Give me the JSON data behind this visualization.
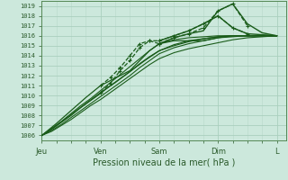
{
  "xlabel": "Pression niveau de la mer( hPa )",
  "bg_color": "#cce8dc",
  "grid_color_major": "#aacfbe",
  "grid_color_minor": "#b8d9ca",
  "line_color": "#1a5c1a",
  "ylim": [
    1005.5,
    1019.5
  ],
  "yticks": [
    1006,
    1007,
    1008,
    1009,
    1010,
    1011,
    1012,
    1013,
    1014,
    1015,
    1016,
    1017,
    1018,
    1019
  ],
  "day_labels": [
    "Jeu",
    "Ven",
    "Sam",
    "Dim",
    "L"
  ],
  "day_positions": [
    0,
    24,
    48,
    72,
    96
  ],
  "xlim": [
    0,
    100
  ],
  "figsize": [
    3.2,
    2.0
  ],
  "dpi": 100,
  "lines": [
    {
      "x": [
        0,
        4,
        8,
        12,
        16,
        20,
        24,
        28,
        32,
        36,
        40,
        44,
        48,
        54,
        60,
        66,
        72,
        78,
        84,
        90,
        96
      ],
      "y": [
        1006.0,
        1006.5,
        1007.1,
        1007.8,
        1008.5,
        1009.2,
        1009.9,
        1010.6,
        1011.3,
        1012.0,
        1012.8,
        1013.5,
        1014.2,
        1014.8,
        1015.2,
        1015.5,
        1015.8,
        1015.9,
        1016.0,
        1016.0,
        1016.0
      ],
      "style": "solid",
      "lw": 0.8
    },
    {
      "x": [
        0,
        4,
        8,
        12,
        16,
        20,
        24,
        28,
        32,
        36,
        40,
        44,
        48,
        54,
        60,
        66,
        72,
        78,
        84,
        90,
        96
      ],
      "y": [
        1006.0,
        1006.4,
        1007.0,
        1007.6,
        1008.3,
        1009.0,
        1009.6,
        1010.3,
        1011.0,
        1011.7,
        1012.4,
        1013.1,
        1013.7,
        1014.3,
        1014.7,
        1015.0,
        1015.3,
        1015.6,
        1015.8,
        1015.9,
        1016.0
      ],
      "style": "solid",
      "lw": 0.8
    },
    {
      "x": [
        0,
        4,
        8,
        12,
        16,
        20,
        24,
        28,
        32,
        36,
        40,
        44,
        48,
        54,
        60,
        66,
        72,
        78,
        84,
        90,
        96
      ],
      "y": [
        1006.0,
        1006.6,
        1007.3,
        1008.0,
        1008.8,
        1009.5,
        1010.2,
        1011.0,
        1011.7,
        1012.4,
        1013.2,
        1013.9,
        1014.5,
        1015.0,
        1015.4,
        1015.7,
        1015.9,
        1016.0,
        1016.0,
        1016.0,
        1016.0
      ],
      "style": "solid",
      "lw": 0.8
    },
    {
      "x": [
        0,
        4,
        8,
        12,
        16,
        20,
        24,
        28,
        32,
        36,
        40,
        44,
        48,
        54,
        60,
        66,
        72,
        78,
        84,
        90,
        96
      ],
      "y": [
        1006.0,
        1006.7,
        1007.4,
        1008.2,
        1009.0,
        1009.7,
        1010.5,
        1011.3,
        1012.1,
        1012.9,
        1013.7,
        1014.5,
        1015.2,
        1015.6,
        1015.8,
        1015.9,
        1016.0,
        1016.0,
        1016.0,
        1016.0,
        1016.0
      ],
      "style": "solid",
      "lw": 0.8
    },
    {
      "x": [
        0,
        6,
        12,
        18,
        24,
        30,
        36,
        42,
        48,
        54,
        60,
        66,
        72,
        78,
        84,
        90,
        96
      ],
      "y": [
        1006.0,
        1007.0,
        1008.1,
        1009.2,
        1010.3,
        1011.3,
        1012.4,
        1013.5,
        1014.5,
        1015.1,
        1015.5,
        1015.7,
        1015.9,
        1016.0,
        1016.0,
        1016.0,
        1016.0
      ],
      "style": "solid",
      "lw": 0.9
    },
    {
      "x": [
        0,
        6,
        12,
        18,
        24,
        28,
        32,
        36,
        40,
        44,
        48,
        54,
        60,
        66,
        72,
        78,
        84,
        90,
        96
      ],
      "y": [
        1006.0,
        1007.2,
        1008.5,
        1009.8,
        1011.0,
        1011.5,
        1012.0,
        1012.5,
        1013.5,
        1014.5,
        1015.2,
        1015.5,
        1015.5,
        1015.5,
        1015.8,
        1016.0,
        1016.0,
        1016.0,
        1016.0
      ],
      "style": "solid",
      "lw": 0.9
    },
    {
      "x": [
        24,
        28,
        32,
        36,
        40,
        44,
        48
      ],
      "y": [
        1010.3,
        1011.2,
        1012.5,
        1013.5,
        1014.8,
        1015.5,
        1015.2
      ],
      "style": "dashed_marker",
      "lw": 0.9
    },
    {
      "x": [
        24,
        28,
        32,
        36,
        40,
        44,
        48
      ],
      "y": [
        1011.0,
        1011.8,
        1012.8,
        1014.0,
        1015.2,
        1015.5,
        1015.5
      ],
      "style": "dashed_marker",
      "lw": 0.9
    },
    {
      "x": [
        48,
        54,
        60,
        66,
        72,
        78,
        84
      ],
      "y": [
        1015.2,
        1015.8,
        1016.2,
        1016.8,
        1018.5,
        1019.2,
        1017.0
      ],
      "style": "dashed_marker",
      "lw": 0.9
    },
    {
      "x": [
        48,
        54,
        60,
        66,
        72,
        78,
        84
      ],
      "y": [
        1015.5,
        1016.0,
        1016.5,
        1017.2,
        1018.0,
        1016.8,
        1016.2
      ],
      "style": "dashed_marker",
      "lw": 0.9
    },
    {
      "x": [
        48,
        54,
        60,
        66,
        72,
        78,
        84,
        90,
        96
      ],
      "y": [
        1015.2,
        1015.8,
        1016.2,
        1016.5,
        1018.5,
        1019.2,
        1017.2,
        1016.3,
        1016.0
      ],
      "style": "solid",
      "lw": 1.0
    },
    {
      "x": [
        48,
        54,
        60,
        66,
        72,
        78,
        84,
        90,
        96
      ],
      "y": [
        1015.5,
        1016.0,
        1016.5,
        1017.2,
        1018.0,
        1016.8,
        1016.2,
        1016.1,
        1016.0
      ],
      "style": "solid",
      "lw": 1.0
    }
  ]
}
